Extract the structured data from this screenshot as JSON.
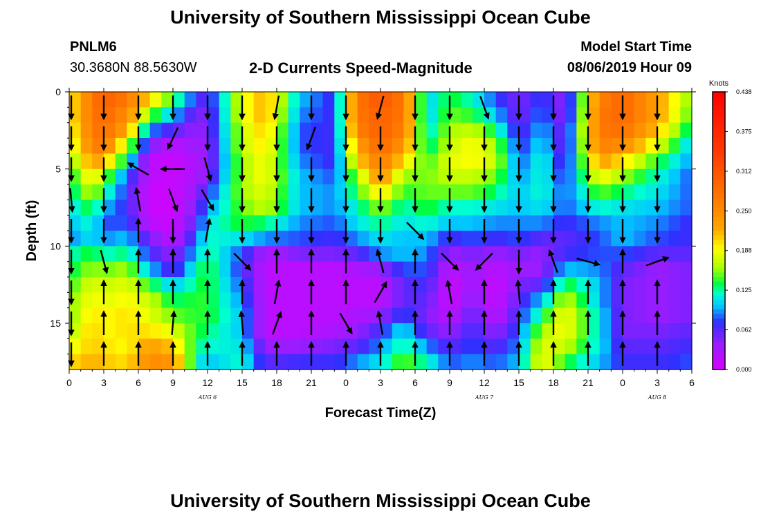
{
  "header": {
    "title": "University of Southern Mississippi Ocean Cube",
    "station_id": "PNLM6",
    "station_coords": "30.3680N 88.5630W",
    "subtitle": "2-D Currents Speed-Magnitude",
    "model_label": "Model Start Time",
    "model_time": "08/06/2019 Hour 09"
  },
  "footer": {
    "title": "University of Southern Mississippi Ocean Cube"
  },
  "chart_data": {
    "type": "heatmap",
    "title": "2-D Currents Speed-Magnitude",
    "xlabel": "Forecast Time(Z)",
    "ylabel": "Depth (ft)",
    "colorbar_label": "Knots",
    "colorbar_ticks": [
      "0.438",
      "0.375",
      "0.312",
      "0.250",
      "0.188",
      "0.125",
      "0.062",
      "0.000"
    ],
    "zlim": [
      0,
      0.438
    ],
    "x_tick_labels": [
      "0",
      "3",
      "6",
      "9",
      "12",
      "15",
      "18",
      "21",
      "0",
      "3",
      "6",
      "9",
      "12",
      "15",
      "18",
      "21",
      "0",
      "3",
      "6"
    ],
    "x_range_hours": [
      0,
      54
    ],
    "date_labels": [
      {
        "label": "AUG 6",
        "hour": 12
      },
      {
        "label": "AUG 7",
        "hour": 36
      },
      {
        "label": "AUG 8",
        "hour": 51
      }
    ],
    "y_tick_labels": [
      "0",
      "5",
      "10",
      "15"
    ],
    "ylim": [
      0,
      18
    ],
    "rows": 18,
    "cols": 54,
    "keyframes": [
      {
        "hour": 0,
        "speed": [
          0.19,
          0.19,
          0.18,
          0.17,
          0.15,
          0.13,
          0.12,
          0.11,
          0.1,
          0.09,
          0.12,
          0.13,
          0.14,
          0.15,
          0.15,
          0.16,
          0.18,
          0.2
        ]
      },
      {
        "hour": 2,
        "speed": [
          0.27,
          0.27,
          0.27,
          0.26,
          0.23,
          0.2,
          0.17,
          0.14,
          0.12,
          0.11,
          0.14,
          0.16,
          0.18,
          0.19,
          0.2,
          0.21,
          0.21,
          0.22
        ]
      },
      {
        "hour": 3,
        "speed": [
          0.3,
          0.29,
          0.28,
          0.27,
          0.22,
          0.16,
          0.13,
          0.1,
          0.08,
          0.09,
          0.12,
          0.15,
          0.17,
          0.18,
          0.19,
          0.19,
          0.2,
          0.21
        ]
      },
      {
        "hour": 5,
        "speed": [
          0.27,
          0.25,
          0.23,
          0.17,
          0.12,
          0.08,
          0.07,
          0.07,
          0.08,
          0.1,
          0.13,
          0.16,
          0.18,
          0.19,
          0.2,
          0.2,
          0.19,
          0.2
        ]
      },
      {
        "hour": 7,
        "speed": [
          0.2,
          0.15,
          0.09,
          0.05,
          0.02,
          0.02,
          0.01,
          0.01,
          0.02,
          0.05,
          0.07,
          0.1,
          0.14,
          0.17,
          0.18,
          0.2,
          0.23,
          0.25
        ]
      },
      {
        "hour": 9,
        "speed": [
          0.14,
          0.1,
          0.06,
          0.02,
          0.01,
          0.01,
          0.01,
          0.01,
          0.01,
          0.02,
          0.04,
          0.06,
          0.1,
          0.13,
          0.15,
          0.18,
          0.21,
          0.24
        ]
      },
      {
        "hour": 11,
        "speed": [
          0.07,
          0.05,
          0.04,
          0.04,
          0.03,
          0.03,
          0.04,
          0.05,
          0.06,
          0.08,
          0.1,
          0.12,
          0.13,
          0.14,
          0.14,
          0.14,
          0.13,
          0.12
        ]
      },
      {
        "hour": 12,
        "speed": [
          0.06,
          0.05,
          0.05,
          0.04,
          0.04,
          0.05,
          0.07,
          0.09,
          0.11,
          0.12,
          0.13,
          0.14,
          0.14,
          0.14,
          0.14,
          0.13,
          0.12,
          0.1
        ]
      },
      {
        "hour": 15,
        "speed": [
          0.18,
          0.18,
          0.17,
          0.17,
          0.16,
          0.16,
          0.16,
          0.15,
          0.14,
          0.11,
          0.08,
          0.07,
          0.08,
          0.09,
          0.1,
          0.1,
          0.11,
          0.12
        ]
      },
      {
        "hour": 17,
        "speed": [
          0.22,
          0.22,
          0.21,
          0.2,
          0.19,
          0.19,
          0.18,
          0.17,
          0.13,
          0.09,
          0.03,
          0.02,
          0.02,
          0.02,
          0.02,
          0.02,
          0.04,
          0.06
        ]
      },
      {
        "hour": 20,
        "speed": [
          0.1,
          0.09,
          0.08,
          0.08,
          0.09,
          0.1,
          0.1,
          0.1,
          0.09,
          0.08,
          0.05,
          0.02,
          0.02,
          0.02,
          0.02,
          0.02,
          0.04,
          0.07
        ]
      },
      {
        "hour": 23,
        "speed": [
          0.07,
          0.07,
          0.07,
          0.07,
          0.07,
          0.08,
          0.09,
          0.09,
          0.08,
          0.07,
          0.05,
          0.02,
          0.02,
          0.02,
          0.02,
          0.03,
          0.05,
          0.07
        ]
      },
      {
        "hour": 25,
        "speed": [
          0.27,
          0.27,
          0.26,
          0.23,
          0.2,
          0.16,
          0.14,
          0.12,
          0.11,
          0.09,
          0.06,
          0.03,
          0.02,
          0.02,
          0.03,
          0.04,
          0.06,
          0.09
        ]
      },
      {
        "hour": 27,
        "speed": [
          0.31,
          0.3,
          0.3,
          0.29,
          0.27,
          0.24,
          0.2,
          0.16,
          0.13,
          0.11,
          0.09,
          0.04,
          0.02,
          0.02,
          0.04,
          0.07,
          0.09,
          0.11
        ]
      },
      {
        "hour": 29,
        "speed": [
          0.27,
          0.27,
          0.26,
          0.24,
          0.2,
          0.16,
          0.14,
          0.12,
          0.11,
          0.1,
          0.1,
          0.08,
          0.06,
          0.06,
          0.08,
          0.11,
          0.13,
          0.15
        ]
      },
      {
        "hour": 31,
        "speed": [
          0.1,
          0.1,
          0.11,
          0.12,
          0.14,
          0.15,
          0.15,
          0.14,
          0.12,
          0.1,
          0.09,
          0.08,
          0.07,
          0.06,
          0.05,
          0.06,
          0.09,
          0.12
        ]
      },
      {
        "hour": 33,
        "speed": [
          0.14,
          0.15,
          0.16,
          0.17,
          0.18,
          0.17,
          0.15,
          0.12,
          0.1,
          0.07,
          0.04,
          0.02,
          0.01,
          0.01,
          0.02,
          0.04,
          0.06,
          0.08
        ]
      },
      {
        "hour": 35,
        "speed": [
          0.12,
          0.14,
          0.17,
          0.19,
          0.19,
          0.17,
          0.15,
          0.12,
          0.1,
          0.08,
          0.05,
          0.04,
          0.04,
          0.05,
          0.06,
          0.07,
          0.08,
          0.09
        ]
      },
      {
        "hour": 37,
        "speed": [
          0.08,
          0.1,
          0.13,
          0.16,
          0.17,
          0.15,
          0.13,
          0.11,
          0.09,
          0.07,
          0.04,
          0.02,
          0.01,
          0.01,
          0.02,
          0.04,
          0.06,
          0.08
        ]
      },
      {
        "hour": 39,
        "speed": [
          0.05,
          0.05,
          0.06,
          0.07,
          0.08,
          0.09,
          0.1,
          0.1,
          0.09,
          0.08,
          0.05,
          0.04,
          0.05,
          0.06,
          0.07,
          0.08,
          0.09,
          0.1
        ]
      },
      {
        "hour": 41,
        "speed": [
          0.08,
          0.09,
          0.1,
          0.11,
          0.12,
          0.12,
          0.12,
          0.11,
          0.09,
          0.06,
          0.04,
          0.04,
          0.06,
          0.1,
          0.13,
          0.16,
          0.18,
          0.19
        ]
      },
      {
        "hour": 43,
        "speed": [
          0.04,
          0.04,
          0.05,
          0.05,
          0.06,
          0.07,
          0.08,
          0.08,
          0.07,
          0.06,
          0.07,
          0.1,
          0.14,
          0.17,
          0.19,
          0.19,
          0.17,
          0.14
        ]
      },
      {
        "hour": 46,
        "speed": [
          0.26,
          0.27,
          0.27,
          0.26,
          0.23,
          0.19,
          0.15,
          0.12,
          0.09,
          0.08,
          0.08,
          0.09,
          0.1,
          0.1,
          0.11,
          0.11,
          0.11,
          0.1
        ]
      },
      {
        "hour": 48,
        "speed": [
          0.29,
          0.29,
          0.28,
          0.25,
          0.2,
          0.16,
          0.13,
          0.11,
          0.1,
          0.1,
          0.08,
          0.06,
          0.05,
          0.05,
          0.05,
          0.05,
          0.06,
          0.07
        ]
      },
      {
        "hour": 51,
        "speed": [
          0.23,
          0.23,
          0.21,
          0.18,
          0.14,
          0.12,
          0.11,
          0.1,
          0.09,
          0.08,
          0.06,
          0.04,
          0.04,
          0.04,
          0.04,
          0.05,
          0.06,
          0.07
        ]
      },
      {
        "hour": 54,
        "speed": [
          0.15,
          0.14,
          0.12,
          0.1,
          0.09,
          0.08,
          0.08,
          0.08,
          0.07,
          0.07,
          0.06,
          0.05,
          0.05,
          0.05,
          0.05,
          0.06,
          0.07,
          0.08
        ]
      }
    ],
    "vector_hours": [
      0,
      3,
      6,
      9,
      12,
      15,
      18,
      21,
      24,
      27,
      30,
      33,
      36,
      39,
      42,
      45,
      48,
      51
    ],
    "vector_depths_ft": [
      1,
      3,
      5,
      7,
      9,
      11,
      13,
      15,
      17
    ],
    "vector_angles_deg": [
      [
        90,
        90,
        90,
        85,
        90,
        90,
        90,
        90,
        90
      ],
      [
        90,
        90,
        90,
        90,
        90,
        75,
        270,
        270,
        270
      ],
      [
        90,
        90,
        210,
        260,
        270,
        270,
        270,
        270,
        270
      ],
      [
        90,
        115,
        180,
        70,
        90,
        270,
        270,
        275,
        270
      ],
      [
        90,
        90,
        75,
        60,
        280,
        270,
        270,
        270,
        270
      ],
      [
        90,
        90,
        90,
        90,
        90,
        45,
        270,
        265,
        270
      ],
      [
        100,
        90,
        90,
        90,
        90,
        270,
        280,
        290,
        270
      ],
      [
        90,
        110,
        90,
        90,
        90,
        270,
        270,
        270,
        270
      ],
      [
        90,
        90,
        90,
        90,
        90,
        270,
        270,
        60,
        270
      ],
      [
        105,
        90,
        90,
        90,
        90,
        255,
        300,
        260,
        270
      ],
      [
        90,
        90,
        90,
        90,
        45,
        270,
        270,
        270,
        270
      ],
      [
        90,
        90,
        90,
        90,
        90,
        45,
        260,
        270,
        270
      ],
      [
        70,
        90,
        90,
        90,
        90,
        135,
        270,
        270,
        270
      ],
      [
        90,
        90,
        90,
        90,
        90,
        90,
        265,
        270,
        270
      ],
      [
        90,
        90,
        90,
        90,
        90,
        250,
        270,
        270,
        270
      ],
      [
        90,
        90,
        90,
        90,
        90,
        15,
        270,
        270,
        270
      ],
      [
        90,
        90,
        90,
        90,
        90,
        270,
        270,
        270,
        270
      ],
      [
        90,
        90,
        90,
        90,
        90,
        340,
        270,
        270,
        270
      ]
    ]
  }
}
